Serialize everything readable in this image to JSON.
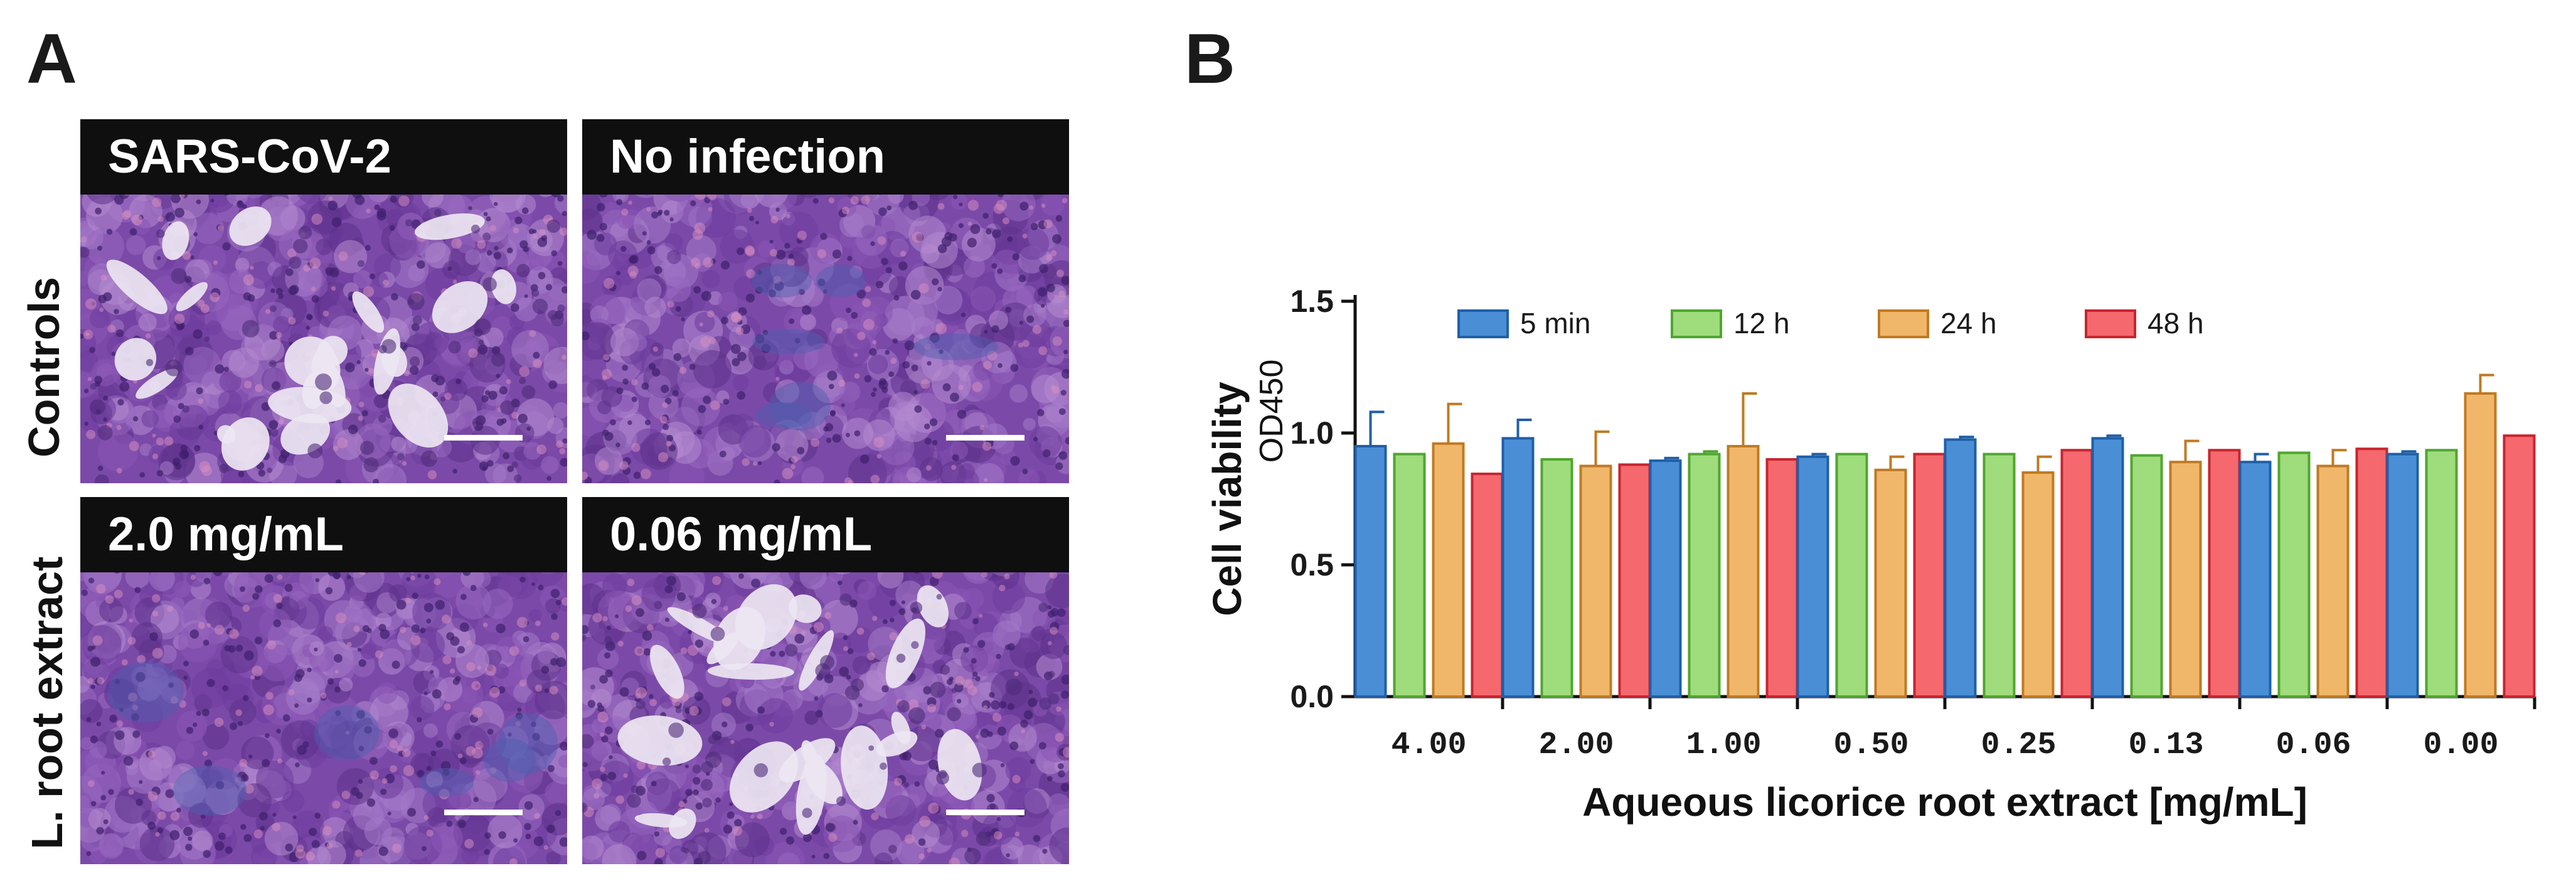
{
  "panel_a": {
    "letter": "A",
    "row_labels": [
      "Controls",
      "L. root extract"
    ],
    "images": [
      {
        "label": "SARS-CoV-2",
        "appearance": "cytopathic"
      },
      {
        "label": "No infection",
        "appearance": "intact"
      },
      {
        "label": "2.0 mg/mL",
        "appearance": "intact"
      },
      {
        "label": "0.06 mg/mL",
        "appearance": "cytopathic"
      }
    ],
    "colors": {
      "stain": "#6b3fa0",
      "label_bar": "#0f0f0f"
    }
  },
  "panel_b": {
    "letter": "B"
  },
  "chart_data": {
    "type": "bar",
    "title": "",
    "xlabel": "Aqueous licorice root extract [mg/mL]",
    "ylabel": "Cell viability",
    "ylabel_sub": "OD450",
    "ylim": [
      0,
      1.5
    ],
    "yticks": [
      "0.0",
      "0.5",
      "1.0",
      "1.5"
    ],
    "legend_placement": "top",
    "categories": [
      "4.00",
      "2.00",
      "1.00",
      "0.50",
      "0.25",
      "0.13",
      "0.06",
      "0.00"
    ],
    "series": [
      {
        "name": "5 min",
        "color": "#4a8fd6",
        "stroke": "#1f5fa8",
        "values": [
          0.95,
          0.98,
          0.895,
          0.91,
          0.975,
          0.98,
          0.89,
          0.92
        ],
        "errors": [
          0.13,
          0.07,
          0.01,
          0.01,
          0.01,
          0.01,
          0.03,
          0.01
        ]
      },
      {
        "name": "12 h",
        "color": "#9fdc7c",
        "stroke": "#4fa62f",
        "values": [
          0.92,
          0.9,
          0.92,
          0.92,
          0.92,
          0.915,
          0.925,
          0.935
        ],
        "errors": [
          0.005,
          0.005,
          0.01,
          0.005,
          0.005,
          0.005,
          0.005,
          0.005
        ]
      },
      {
        "name": "24 h",
        "color": "#f0b76a",
        "stroke": "#c07a22",
        "values": [
          0.96,
          0.875,
          0.95,
          0.86,
          0.85,
          0.89,
          0.875,
          1.15
        ],
        "errors": [
          0.15,
          0.13,
          0.2,
          0.05,
          0.06,
          0.08,
          0.06,
          0.07
        ]
      },
      {
        "name": "48 h",
        "color": "#f4686e",
        "stroke": "#c8242e",
        "values": [
          0.845,
          0.88,
          0.9,
          0.92,
          0.935,
          0.935,
          0.94,
          0.99
        ],
        "errors": [
          0.005,
          0.005,
          0.005,
          0.005,
          0.005,
          0.005,
          0.005,
          0.005
        ]
      }
    ]
  }
}
